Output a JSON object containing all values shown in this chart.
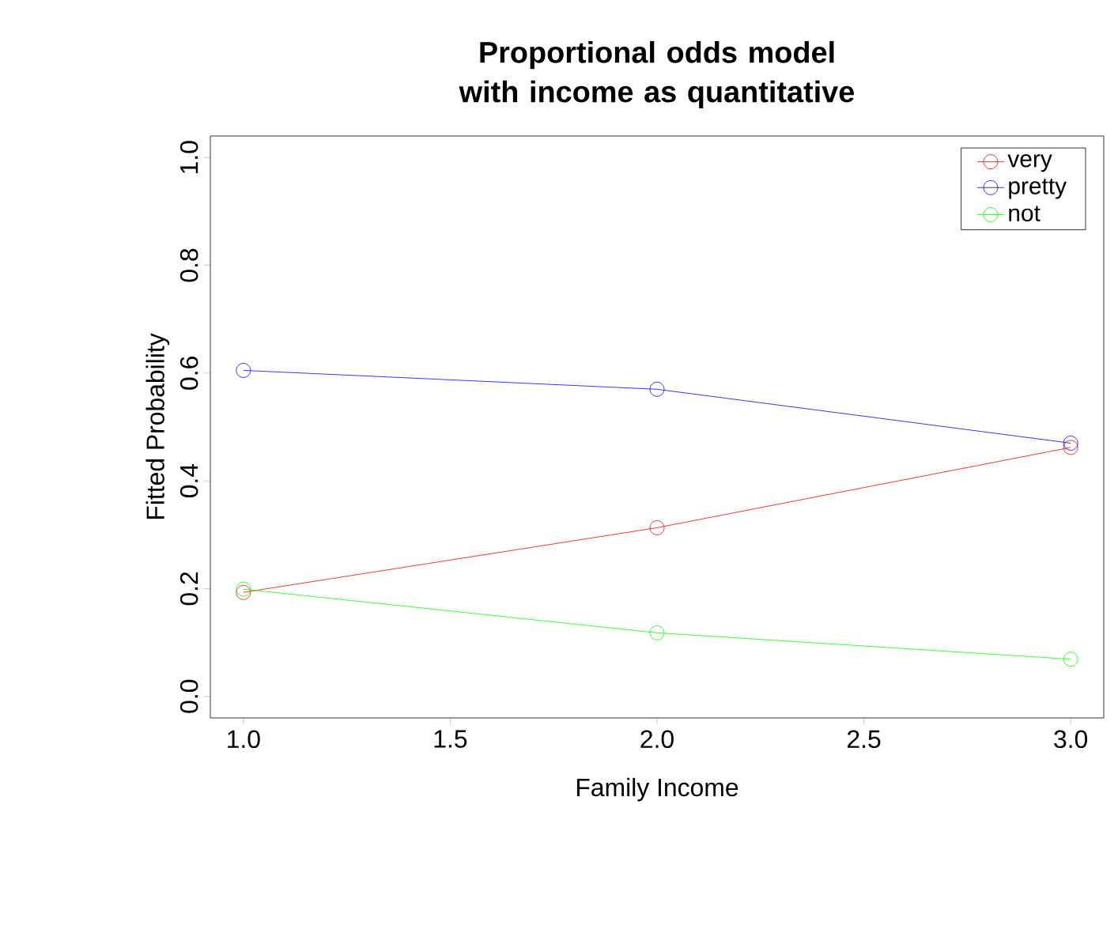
{
  "chart_data": {
    "type": "line",
    "title": "Proportional odds model with income as quantitative",
    "xlabel": "Family Income",
    "ylabel": "Fitted Probability",
    "x": [
      1,
      2,
      3
    ],
    "series": [
      {
        "name": "very",
        "color": "#ff0000",
        "values": [
          0.193,
          0.313,
          0.462
        ]
      },
      {
        "name": "pretty",
        "color": "#0000ff",
        "values": [
          0.605,
          0.57,
          0.47
        ]
      },
      {
        "name": "not",
        "color": "#00ff00",
        "values": [
          0.199,
          0.118,
          0.069
        ]
      }
    ],
    "xlim": [
      0.92,
      3.08
    ],
    "ylim": [
      -0.04,
      1.04
    ],
    "xticks": [
      {
        "value": 1,
        "label": "1.0"
      },
      {
        "value": 1.5,
        "label": "1.5"
      },
      {
        "value": 2,
        "label": "2.0"
      },
      {
        "value": 2.5,
        "label": "2.5"
      },
      {
        "value": 3,
        "label": "3.0"
      }
    ],
    "yticks": [
      {
        "value": 0,
        "label": "0.0"
      },
      {
        "value": 0.2,
        "label": "0.2"
      },
      {
        "value": 0.4,
        "label": "0.4"
      },
      {
        "value": 0.6,
        "label": "0.6"
      },
      {
        "value": 0.8,
        "label": "0.8"
      },
      {
        "value": 1,
        "label": "1.0"
      }
    ],
    "marker": "circle",
    "legend": "top right",
    "grid": false
  }
}
